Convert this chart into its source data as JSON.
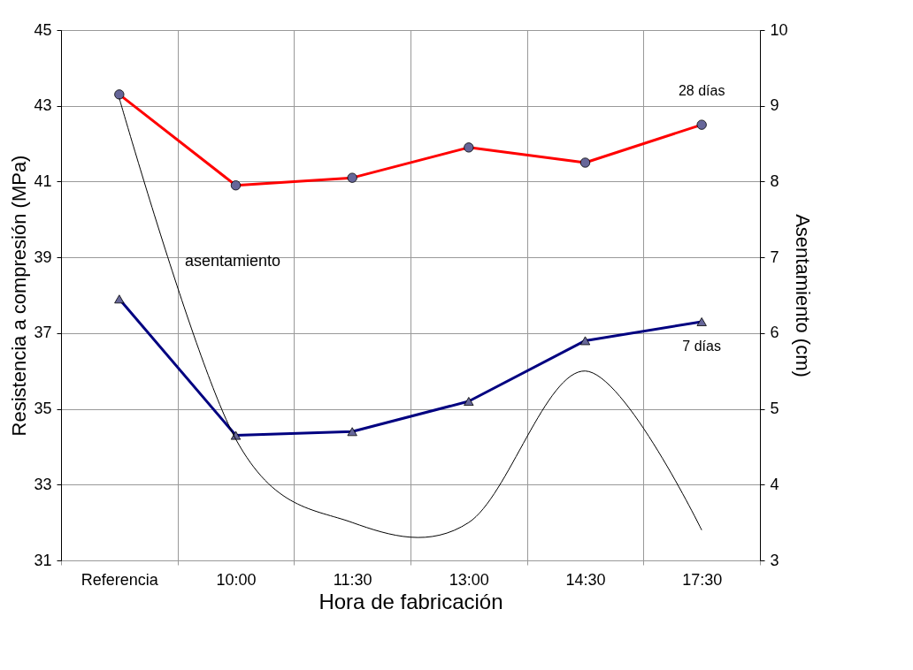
{
  "chart_data": {
    "type": "line",
    "xlabel": "Hora de fabricación",
    "ylabel": "Resistencia a compresión (MPa)",
    "y2label": "Asentamiento (cm)",
    "categories": [
      "Referencia",
      "10:00",
      "11:30",
      "13:00",
      "14:30",
      "17:30"
    ],
    "series": [
      {
        "name": "28 días",
        "color": "#ff0000",
        "marker": "circle",
        "values": [
          43.3,
          40.9,
          41.1,
          41.9,
          41.5,
          42.5
        ]
      },
      {
        "name": "7 días",
        "color": "#000080",
        "marker": "triangle",
        "values": [
          37.9,
          34.3,
          34.4,
          35.2,
          36.8,
          37.3
        ]
      },
      {
        "name": "asentamiento",
        "color": "#000000",
        "marker": "none",
        "axis": "y2",
        "values": [
          9.1,
          4.6,
          3.5,
          3.5,
          5.5,
          3.4
        ]
      }
    ],
    "ylim": [
      31,
      45
    ],
    "yticks": [
      31,
      33,
      35,
      37,
      39,
      41,
      43,
      45
    ],
    "y2lim": [
      3,
      10
    ],
    "y2ticks": [
      3,
      4,
      5,
      6,
      7,
      8,
      9,
      10
    ],
    "grid": true,
    "legend": false
  }
}
